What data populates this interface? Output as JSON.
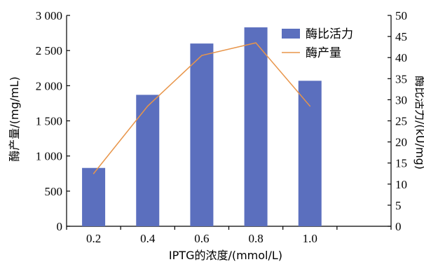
{
  "chart_data": {
    "type": "bar+line",
    "categories": [
      "0.2",
      "0.4",
      "0.6",
      "0.8",
      "1.0"
    ],
    "x_extra_slots": 1,
    "xlabel": "IPTG的浓度/(mmol/L)",
    "ylabel_left": "酶产量/(mg/mL)",
    "ylabel_right": "酶比活力/(kU/mg)",
    "y_left": {
      "min": 0,
      "max": 3000,
      "step": 500,
      "tick_labels": [
        "0",
        "500",
        "1 000",
        "1 500",
        "2 000",
        "2 500",
        "3 000"
      ]
    },
    "y_right": {
      "min": 0,
      "max": 50,
      "step": 5,
      "tick_labels": [
        "0",
        "5",
        "10",
        "15",
        "20",
        "25",
        "30",
        "35",
        "40",
        "45",
        "50"
      ]
    },
    "series": [
      {
        "name": "酶比活力",
        "kind": "bar",
        "axis": "left",
        "color": "#5b6fbe",
        "values": [
          830,
          1870,
          2600,
          2830,
          2070
        ]
      },
      {
        "name": "酶产量",
        "kind": "line",
        "axis": "right",
        "color": "#e8954a",
        "values": [
          12.5,
          28.5,
          40.5,
          43.5,
          28.5
        ]
      }
    ],
    "legend_position": "top-right",
    "grid": false
  }
}
